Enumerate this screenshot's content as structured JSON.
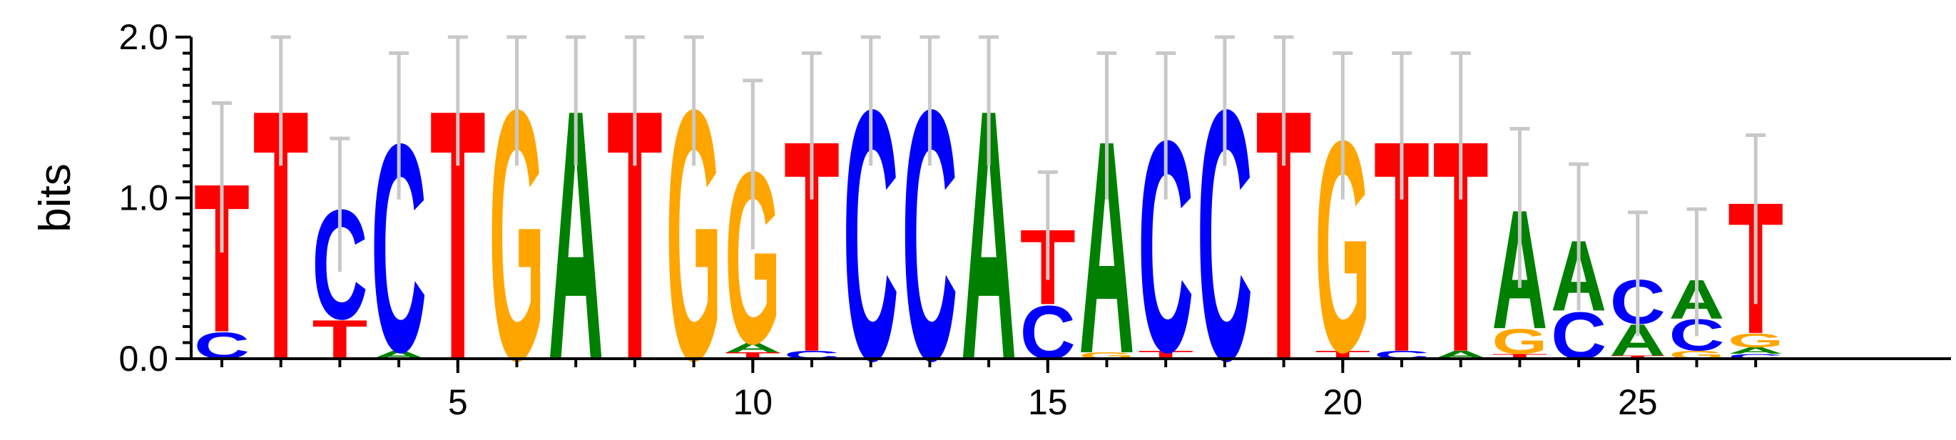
{
  "chart_data": {
    "type": "sequence-logo",
    "ylabel": "bits",
    "ylim": [
      0,
      2
    ],
    "yticks": [
      {
        "value": 0,
        "label": "0.0"
      },
      {
        "value": 1,
        "label": "1.0"
      },
      {
        "value": 2,
        "label": "2.0"
      }
    ],
    "xlim": [
      0.5,
      27.5
    ],
    "xticks": [
      {
        "value": 5,
        "label": "5"
      },
      {
        "value": 10,
        "label": "10"
      },
      {
        "value": 15,
        "label": "15"
      },
      {
        "value": 20,
        "label": "20"
      },
      {
        "value": 25,
        "label": "25"
      }
    ],
    "colors": {
      "A": "#008000",
      "C": "#0000ff",
      "G": "#ffa500",
      "T": "#ff0000"
    },
    "positions": [
      {
        "pos": 1,
        "letters": [
          [
            "C",
            0.17
          ],
          [
            "T",
            0.95
          ]
        ],
        "err": [
          0.66,
          1.59
        ]
      },
      {
        "pos": 2,
        "letters": [
          [
            "T",
            1.6
          ]
        ],
        "err": [
          1.2,
          2.0
        ]
      },
      {
        "pos": 3,
        "letters": [
          [
            "T",
            0.25
          ],
          [
            "C",
            0.7
          ]
        ],
        "err": [
          0.54,
          1.37
        ]
      },
      {
        "pos": 4,
        "letters": [
          [
            "A",
            0.05
          ],
          [
            "C",
            1.33
          ]
        ],
        "err": [
          0.99,
          1.9
        ]
      },
      {
        "pos": 5,
        "letters": [
          [
            "T",
            1.6
          ]
        ],
        "err": [
          1.2,
          2.0
        ]
      },
      {
        "pos": 6,
        "letters": [
          [
            "G",
            1.6
          ]
        ],
        "err": [
          1.2,
          2.0
        ]
      },
      {
        "pos": 7,
        "letters": [
          [
            "A",
            1.6
          ]
        ],
        "err": [
          1.2,
          2.0
        ]
      },
      {
        "pos": 8,
        "letters": [
          [
            "T",
            1.6
          ]
        ],
        "err": [
          1.2,
          2.0
        ]
      },
      {
        "pos": 9,
        "letters": [
          [
            "G",
            1.6
          ]
        ],
        "err": [
          1.2,
          2.0
        ]
      },
      {
        "pos": 10,
        "letters": [
          [
            "T",
            0.04
          ],
          [
            "A",
            0.06
          ],
          [
            "G",
            1.1
          ]
        ],
        "err": [
          0.68,
          1.73
        ]
      },
      {
        "pos": 11,
        "letters": [
          [
            "C",
            0.05
          ],
          [
            "T",
            1.35
          ]
        ],
        "err": [
          0.99,
          1.9
        ]
      },
      {
        "pos": 12,
        "letters": [
          [
            "C",
            1.6
          ]
        ],
        "err": [
          1.2,
          2.0
        ]
      },
      {
        "pos": 13,
        "letters": [
          [
            "C",
            1.6
          ]
        ],
        "err": [
          1.2,
          2.0
        ]
      },
      {
        "pos": 14,
        "letters": [
          [
            "A",
            1.6
          ]
        ],
        "err": [
          1.2,
          2.0
        ]
      },
      {
        "pos": 15,
        "letters": [
          [
            "C",
            0.34
          ],
          [
            "T",
            0.48
          ]
        ],
        "err": [
          0.49,
          1.16
        ]
      },
      {
        "pos": 16,
        "letters": [
          [
            "G",
            0.04
          ],
          [
            "A",
            1.36
          ]
        ],
        "err": [
          0.99,
          1.9
        ]
      },
      {
        "pos": 17,
        "letters": [
          [
            "T",
            0.05
          ],
          [
            "C",
            1.35
          ]
        ],
        "err": [
          0.99,
          1.9
        ]
      },
      {
        "pos": 18,
        "letters": [
          [
            "C",
            1.6
          ]
        ],
        "err": [
          1.2,
          2.0
        ]
      },
      {
        "pos": 19,
        "letters": [
          [
            "T",
            1.6
          ]
        ],
        "err": [
          1.2,
          2.0
        ]
      },
      {
        "pos": 20,
        "letters": [
          [
            "T",
            0.05
          ],
          [
            "G",
            1.35
          ]
        ],
        "err": [
          0.99,
          1.9
        ]
      },
      {
        "pos": 21,
        "letters": [
          [
            "C",
            0.05
          ],
          [
            "T",
            1.35
          ]
        ],
        "err": [
          0.99,
          1.9
        ]
      },
      {
        "pos": 22,
        "letters": [
          [
            "A",
            0.05
          ],
          [
            "T",
            1.35
          ]
        ],
        "err": [
          0.99,
          1.9
        ]
      },
      {
        "pos": 23,
        "letters": [
          [
            "T",
            0.03
          ],
          [
            "G",
            0.16
          ],
          [
            "A",
            0.76
          ]
        ],
        "err": [
          0.44,
          1.43
        ]
      },
      {
        "pos": 24,
        "letters": [
          [
            "C",
            0.3
          ],
          [
            "A",
            0.45
          ]
        ],
        "err": [
          0.3,
          1.21
        ]
      },
      {
        "pos": 25,
        "letters": [
          [
            "T",
            0.02
          ],
          [
            "A",
            0.2
          ],
          [
            "C",
            0.28
          ]
        ],
        "err": [
          0.14,
          0.91
        ]
      },
      {
        "pos": 26,
        "letters": [
          [
            "G",
            0.05
          ],
          [
            "C",
            0.2
          ],
          [
            "A",
            0.25
          ]
        ],
        "err": [
          0.14,
          0.93
        ]
      },
      {
        "pos": 27,
        "letters": [
          [
            "C",
            0.03
          ],
          [
            "A",
            0.04
          ],
          [
            "G",
            0.09
          ],
          [
            "T",
            0.84
          ]
        ],
        "err": [
          0.34,
          1.39
        ]
      }
    ]
  }
}
